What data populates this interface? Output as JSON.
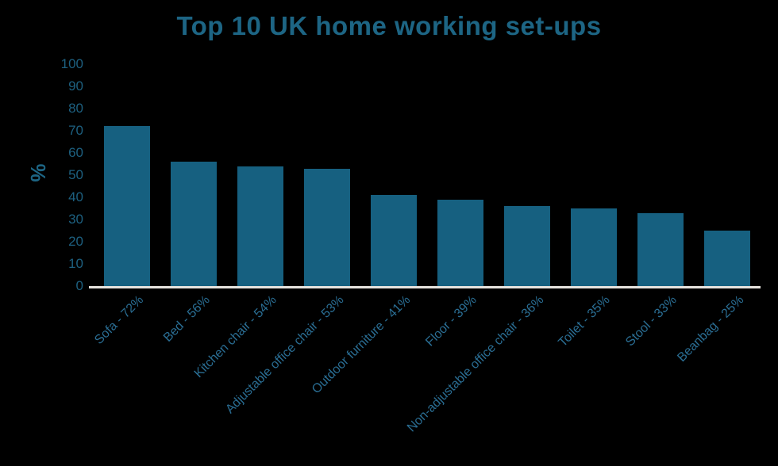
{
  "chart_data": {
    "type": "bar",
    "title": "Top 10 UK home working set-ups",
    "xlabel": "",
    "ylabel": "%",
    "categories": [
      "Sofa - 72%",
      "Bed - 56%",
      "Kitchen chair - 54%",
      "Adjustable office chair - 53%",
      "Outdoor furniture - 41%",
      "Floor - 39%",
      "Non-adjustable office chair - 36%",
      "Toilet - 35%",
      "Stool - 33%",
      "Beanbag - 25%"
    ],
    "values": [
      72,
      56,
      54,
      53,
      41,
      39,
      36,
      35,
      33,
      25
    ],
    "ylim": [
      0,
      100
    ],
    "yticks": [
      0,
      10,
      20,
      30,
      40,
      50,
      60,
      70,
      80,
      90,
      100
    ],
    "grid": false,
    "legend": null,
    "colors": {
      "background": "#000000",
      "bar": "#166080",
      "title": "#1d6584",
      "y_tick_label": "#1d6080",
      "y_axis_label": "#1d6584",
      "x_category_label": "#2a6e94",
      "axis_line": "#e7e4df"
    }
  }
}
